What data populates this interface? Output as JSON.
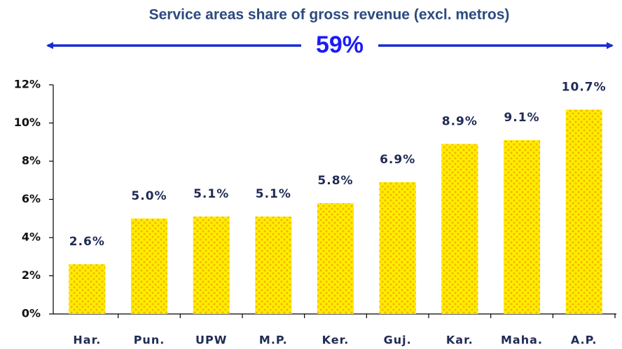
{
  "chart_data": {
    "type": "bar",
    "title": "Service areas share of gross revenue (excl. metros)",
    "annotation": "59%",
    "categories": [
      "Har.",
      "Pun.",
      "UPW",
      "M.P.",
      "Ker.",
      "Guj.",
      "Kar.",
      "Maha.",
      "A.P."
    ],
    "values": [
      2.6,
      5.0,
      5.1,
      5.1,
      5.8,
      6.9,
      8.9,
      9.1,
      10.7
    ],
    "value_labels": [
      "2.6%",
      "5.0%",
      "5.1%",
      "5.1%",
      "5.8%",
      "6.9%",
      "8.9%",
      "9.1%",
      "10.7%"
    ],
    "color": "#ffee00",
    "ylim": [
      0,
      12
    ],
    "yticks": [
      {
        "value": 0,
        "label": "0%"
      },
      {
        "value": 2,
        "label": "2%"
      },
      {
        "value": 4,
        "label": "4%"
      },
      {
        "value": 6,
        "label": "6%"
      },
      {
        "value": 8,
        "label": "8%"
      },
      {
        "value": 10,
        "label": "10%"
      },
      {
        "value": 12,
        "label": "12%"
      }
    ],
    "grid": false
  }
}
